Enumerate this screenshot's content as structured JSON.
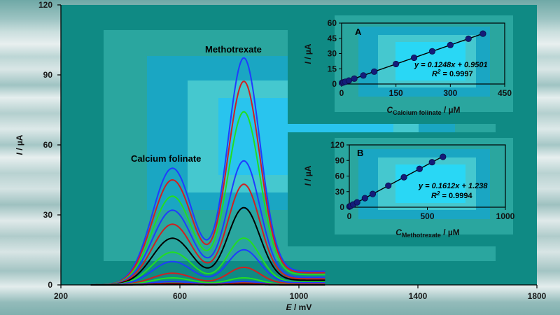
{
  "chart_data": [
    {
      "type": "line",
      "xlabel_var": "E",
      "xlabel_unit": " / mV",
      "ylabel_var": "I",
      "ylabel_unit": " / µA",
      "xlim": [
        200,
        1800
      ],
      "ylim": [
        0,
        120
      ],
      "xticks": [
        200,
        600,
        1000,
        1400,
        1800
      ],
      "yticks": [
        0,
        30,
        60,
        90,
        120
      ],
      "annotations": {
        "peak1": "Calcium folinate",
        "peak2": "Methotrexate"
      },
      "x_start": 300,
      "x_end": 1090,
      "peak1_x": 575,
      "peak2_x": 815,
      "series": [
        {
          "color": "#1f3cff",
          "p1": 50,
          "p2": 97
        },
        {
          "color": "#d02020",
          "p1": 45,
          "p2": 87
        },
        {
          "color": "#22dd22",
          "p1": 38,
          "p2": 74
        },
        {
          "color": "#1f3cff",
          "p1": 32,
          "p2": 53
        },
        {
          "color": "#d02020",
          "p1": 26,
          "p2": 43
        },
        {
          "color": "#000000",
          "p1": 20,
          "p2": 33
        },
        {
          "color": "#22dd22",
          "p1": 14,
          "p2": 20
        },
        {
          "color": "#1f3cff",
          "p1": 10,
          "p2": 15
        },
        {
          "color": "#d02020",
          "p1": 5,
          "p2": 7.5
        },
        {
          "color": "#22dd22",
          "p1": 3,
          "p2": 3
        },
        {
          "color": "#1f3cff",
          "p1": 1.5,
          "p2": 1.5
        },
        {
          "color": "#d02020",
          "p1": 0.7,
          "p2": 0.8
        },
        {
          "color": "#000000",
          "p1": 0.3,
          "p2": 0.3
        }
      ]
    },
    {
      "type": "scatter",
      "panel": "A",
      "xlabel_var": "C",
      "xlabel_sub": "Calcium folinate",
      "xlabel_unit": " / µM",
      "ylabel_var": "I",
      "ylabel_unit": " / µA",
      "xlim": [
        0,
        450
      ],
      "ylim": [
        0,
        60
      ],
      "xticks": [
        0,
        150,
        300,
        450
      ],
      "yticks": [
        0,
        15,
        30,
        45,
        60
      ],
      "equation": "y = 0.1248x + 0.9501",
      "r2_label": "R",
      "r2_value": " = 0.9997",
      "slope": 0.1248,
      "intercept": 0.9501,
      "x": [
        1,
        5,
        10,
        20,
        35,
        60,
        90,
        150,
        200,
        250,
        300,
        350,
        390
      ],
      "y": [
        1.1,
        1.6,
        2.2,
        3.4,
        5.3,
        8.4,
        12.2,
        19.7,
        25.9,
        32.2,
        38.4,
        44.6,
        49.6
      ]
    },
    {
      "type": "scatter",
      "panel": "B",
      "xlabel_var": "C",
      "xlabel_sub": "Methotrexate",
      "xlabel_unit": " / µM",
      "ylabel_var": "I",
      "ylabel_unit": " / µA",
      "xlim": [
        0,
        1000
      ],
      "ylim": [
        0,
        120
      ],
      "xticks": [
        0,
        500,
        1000
      ],
      "yticks": [
        0,
        30,
        60,
        90,
        120
      ],
      "equation": "y = 0.1612x + 1.238",
      "r2_label": "R",
      "r2_value": " = 0.9994",
      "slope": 0.1612,
      "intercept": 1.238,
      "x": [
        1,
        5,
        10,
        25,
        50,
        100,
        150,
        250,
        350,
        450,
        530,
        600
      ],
      "y": [
        1.4,
        2.0,
        2.8,
        5.3,
        9.3,
        17.4,
        25.4,
        41.5,
        57.7,
        73.8,
        86.7,
        97.0
      ]
    }
  ]
}
